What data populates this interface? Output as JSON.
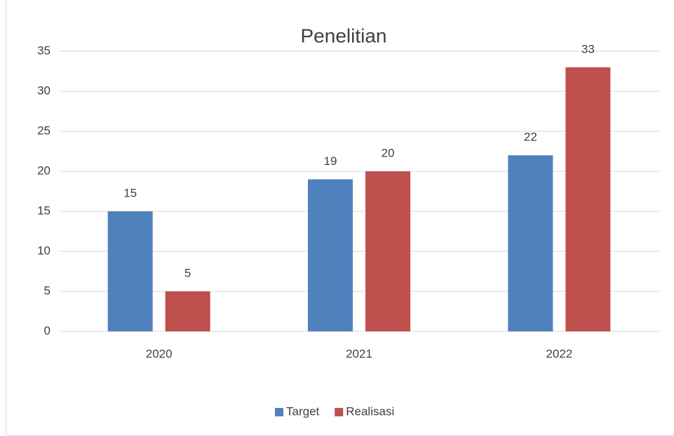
{
  "chart_data": {
    "type": "bar",
    "title": "Penelitian",
    "categories": [
      "2020",
      "2021",
      "2022"
    ],
    "series": [
      {
        "name": "Target",
        "color": "#4f81bd",
        "values": [
          15,
          19,
          22
        ]
      },
      {
        "name": "Realisasi",
        "color": "#c0504d",
        "values": [
          5,
          20,
          33
        ]
      }
    ],
    "ylim": [
      0,
      35
    ],
    "yticks": [
      0,
      5,
      10,
      15,
      20,
      25,
      30,
      35
    ],
    "grid": true,
    "legend": "bottom"
  }
}
